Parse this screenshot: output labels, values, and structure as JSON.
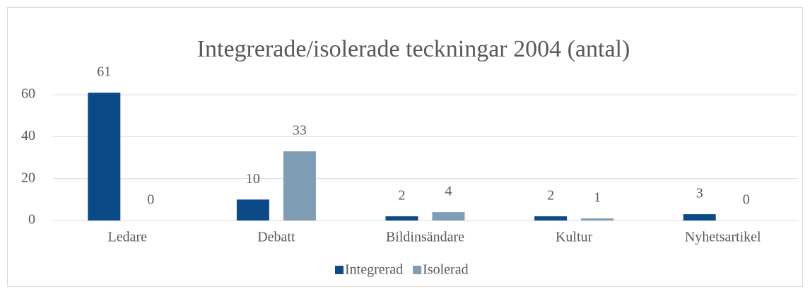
{
  "chart_data": {
    "type": "bar",
    "title": "Integrerade/isolerade teckningar 2004 (antal)",
    "categories": [
      "Ledare",
      "Debatt",
      "Bildinsändare",
      "Kultur",
      "Nyhetsartikel"
    ],
    "series": [
      {
        "name": "Integrerad",
        "color": "#0b4a86",
        "values": [
          61,
          10,
          2,
          2,
          3
        ]
      },
      {
        "name": "Isolerad",
        "color": "#7f9db5",
        "values": [
          0,
          33,
          4,
          1,
          0
        ]
      }
    ],
    "ylim": [
      0,
      65
    ],
    "yticks": [
      0,
      20,
      40,
      60
    ],
    "grid": true,
    "legend": "bottom"
  }
}
